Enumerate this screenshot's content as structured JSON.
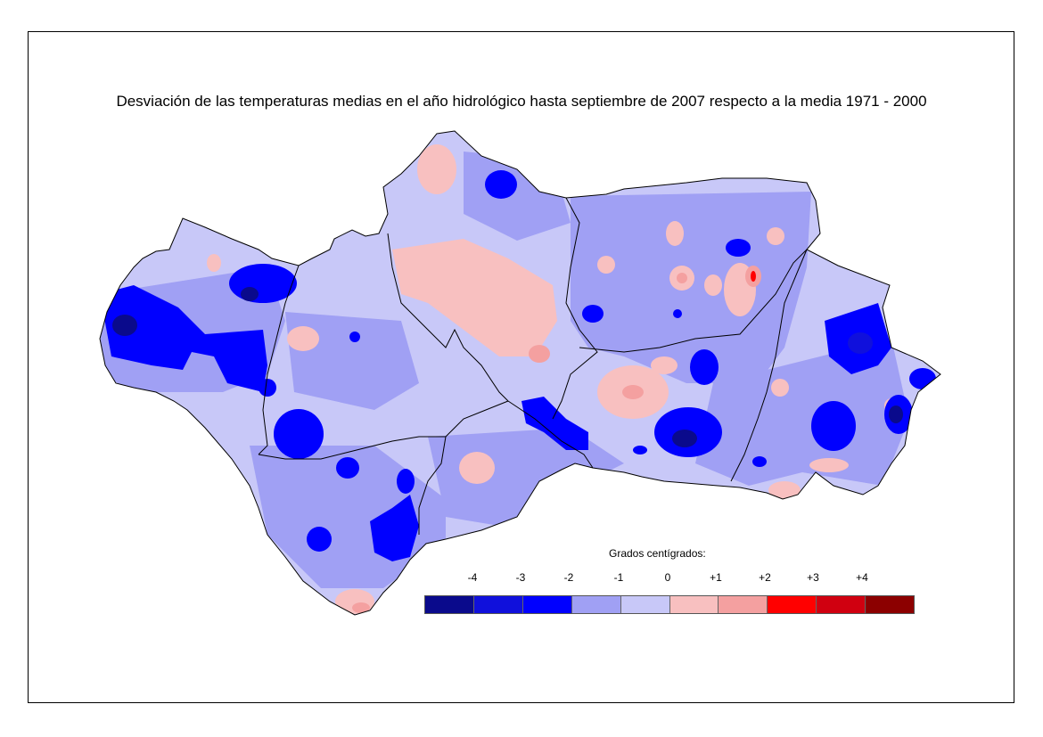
{
  "title": "Desviación de las temperaturas medias en el año hidrológico hasta septiembre de 2007 respecto a la media 1971 - 2000",
  "legend": {
    "title": "Grados centígrados:",
    "ticks": [
      "-4",
      "-3",
      "-2",
      "-1",
      "0",
      "+1",
      "+2",
      "+3",
      "+4"
    ],
    "colors": [
      "#0a0a8c",
      "#1010dc",
      "#0000ff",
      "#a0a0f4",
      "#c8c8f8",
      "#f8c0c0",
      "#f4a0a0",
      "#ff0000",
      "#d00010",
      "#8c0000"
    ]
  },
  "colors": {
    "base": "#c8c8f8",
    "light_blue": "#a0a0f4",
    "blue": "#0000ff",
    "dark_blue": "#1010dc",
    "darkest_blue": "#0a0a8c",
    "light_pink": "#f8c0c0",
    "pink": "#f4a0a0",
    "red": "#ff0000"
  }
}
